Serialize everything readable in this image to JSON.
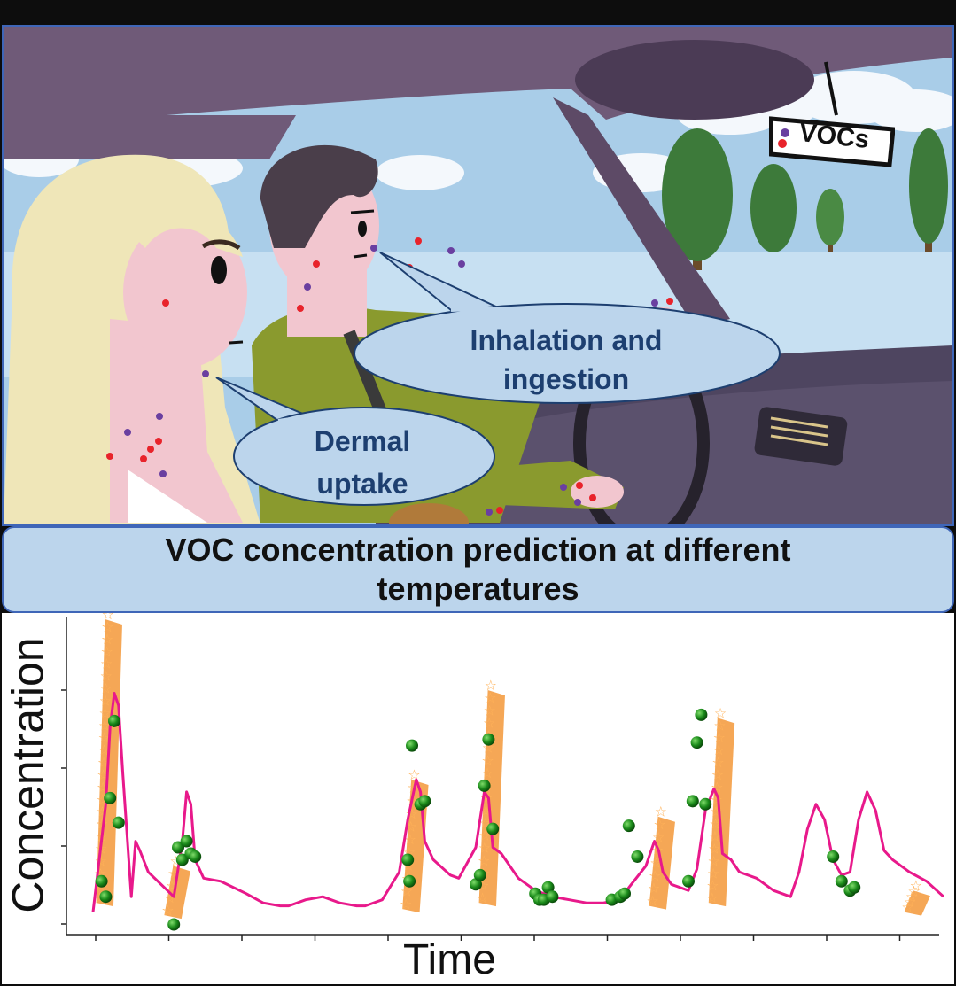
{
  "scene": {
    "sign_label": "VOCs",
    "bubble_inhalation": "Inhalation and ingestion",
    "bubble_dermal": "Dermal uptake",
    "colors": {
      "car_interior": "#6f5a78",
      "sky": "#9fc8e8",
      "bubble_fill": "#bcd5ec",
      "bubble_text": "#1d3f70",
      "voc_red": "#e8232b",
      "voc_purple": "#6a3fa0"
    }
  },
  "panel_title": "VOC concentration prediction at different temperatures",
  "chart_data": {
    "type": "line",
    "xlabel": "Time",
    "ylabel": "Concentration",
    "xlim": [
      0,
      100
    ],
    "ylim": [
      0,
      100
    ],
    "x_ticks_labeled": false,
    "y_ticks_labeled": false,
    "series": [
      {
        "kind": "line",
        "color": "#e8198b",
        "points": [
          [
            0,
            5
          ],
          [
            1.5,
            40
          ],
          [
            2,
            65
          ],
          [
            2.5,
            76
          ],
          [
            3,
            72
          ],
          [
            3.5,
            50
          ],
          [
            4,
            30
          ],
          [
            4.5,
            10
          ],
          [
            5,
            28
          ],
          [
            5.5,
            25
          ],
          [
            6.5,
            18
          ],
          [
            9.5,
            10
          ],
          [
            10.5,
            28
          ],
          [
            11,
            44
          ],
          [
            11.5,
            40
          ],
          [
            12,
            22
          ],
          [
            13,
            16
          ],
          [
            15,
            15
          ],
          [
            18,
            11
          ],
          [
            20,
            8
          ],
          [
            22,
            7
          ],
          [
            23,
            7
          ],
          [
            25,
            9
          ],
          [
            27,
            10
          ],
          [
            29,
            8
          ],
          [
            31,
            7
          ],
          [
            32,
            7
          ],
          [
            34,
            9
          ],
          [
            36,
            18
          ],
          [
            37,
            35
          ],
          [
            38,
            48
          ],
          [
            38.5,
            44
          ],
          [
            39,
            28
          ],
          [
            40,
            22
          ],
          [
            42,
            17
          ],
          [
            43,
            16
          ],
          [
            45,
            26
          ],
          [
            46,
            44
          ],
          [
            46.5,
            42
          ],
          [
            47,
            26
          ],
          [
            48,
            24
          ],
          [
            50,
            16
          ],
          [
            52,
            12
          ],
          [
            54,
            10
          ],
          [
            56,
            9
          ],
          [
            58,
            8
          ],
          [
            60,
            8
          ],
          [
            62,
            9
          ],
          [
            63,
            13
          ],
          [
            65,
            20
          ],
          [
            66,
            28
          ],
          [
            66.5,
            25
          ],
          [
            67,
            18
          ],
          [
            68,
            14
          ],
          [
            70,
            12
          ],
          [
            71,
            19
          ],
          [
            72,
            38
          ],
          [
            73,
            45
          ],
          [
            73.5,
            42
          ],
          [
            74,
            24
          ],
          [
            75,
            22
          ],
          [
            76,
            18
          ],
          [
            78,
            16
          ],
          [
            80,
            12
          ],
          [
            82,
            10
          ],
          [
            83,
            18
          ],
          [
            84,
            32
          ],
          [
            85,
            40
          ],
          [
            86,
            35
          ],
          [
            87,
            22
          ],
          [
            88,
            17
          ],
          [
            89,
            18
          ],
          [
            90,
            35
          ],
          [
            91,
            44
          ],
          [
            92,
            38
          ],
          [
            93,
            25
          ],
          [
            94,
            22
          ],
          [
            96,
            18
          ],
          [
            98,
            15
          ],
          [
            100,
            10
          ]
        ]
      },
      {
        "kind": "band",
        "marker": "star",
        "color": "#f28a1e",
        "segments": [
          [
            1,
            8,
            100
          ],
          [
            9,
            4,
            20
          ],
          [
            37,
            6,
            48
          ],
          [
            46,
            8,
            77
          ],
          [
            66,
            7,
            36
          ],
          [
            73,
            8,
            68
          ],
          [
            96,
            5,
            12
          ]
        ]
      },
      {
        "kind": "scatter",
        "marker": "sphere",
        "color": "#1a8a1a",
        "points": [
          [
            1,
            15
          ],
          [
            1.5,
            10
          ],
          [
            2,
            42
          ],
          [
            2.5,
            67
          ],
          [
            3,
            34
          ],
          [
            9.5,
            1
          ],
          [
            10,
            26
          ],
          [
            10.5,
            22
          ],
          [
            11,
            28
          ],
          [
            11.5,
            24
          ],
          [
            12,
            23
          ],
          [
            37,
            22
          ],
          [
            37.2,
            15
          ],
          [
            37.5,
            59
          ],
          [
            38.5,
            40
          ],
          [
            39,
            41
          ],
          [
            45,
            14
          ],
          [
            45.5,
            17
          ],
          [
            46,
            46
          ],
          [
            46.5,
            61
          ],
          [
            47,
            32
          ],
          [
            52,
            11
          ],
          [
            52.5,
            9
          ],
          [
            53,
            9
          ],
          [
            53.5,
            13
          ],
          [
            54,
            10
          ],
          [
            61,
            9
          ],
          [
            62,
            10
          ],
          [
            62.5,
            11
          ],
          [
            63,
            33
          ],
          [
            64,
            23
          ],
          [
            70,
            15
          ],
          [
            70.5,
            41
          ],
          [
            71,
            60
          ],
          [
            71.5,
            69
          ],
          [
            72,
            40
          ],
          [
            87,
            23
          ],
          [
            88,
            15
          ],
          [
            89,
            12
          ],
          [
            89.5,
            13
          ]
        ]
      }
    ]
  }
}
